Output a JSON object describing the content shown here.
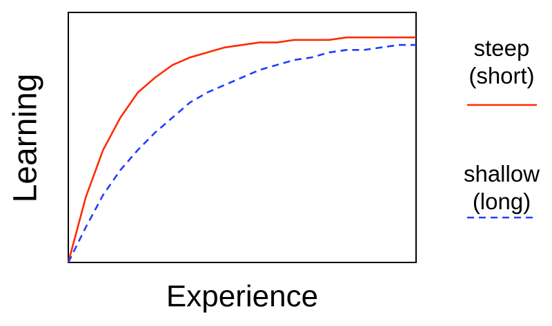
{
  "chart_data": {
    "type": "line",
    "x_label": "Experience",
    "y_label": "Learning",
    "x": [
      0,
      5,
      10,
      15,
      20,
      25,
      30,
      35,
      40,
      45,
      50,
      55,
      60,
      65,
      70,
      75,
      80,
      85,
      90,
      95,
      100
    ],
    "xlim": [
      0,
      100
    ],
    "ylim": [
      0,
      100
    ],
    "series": [
      {
        "name": "steep (short)",
        "color": "#ff2a00",
        "style": "solid",
        "values": [
          0,
          26,
          45,
          58,
          68,
          74,
          79,
          82,
          84,
          86,
          87,
          88,
          88,
          89,
          89,
          89,
          90,
          90,
          90,
          90,
          90
        ]
      },
      {
        "name": "shallow (long)",
        "color": "#1f3cff",
        "style": "dashed",
        "values": [
          0,
          14,
          27,
          37,
          45,
          52,
          58,
          64,
          68,
          71,
          74,
          77,
          79,
          81,
          82,
          84,
          85,
          85,
          86,
          87,
          87
        ]
      }
    ]
  }
}
